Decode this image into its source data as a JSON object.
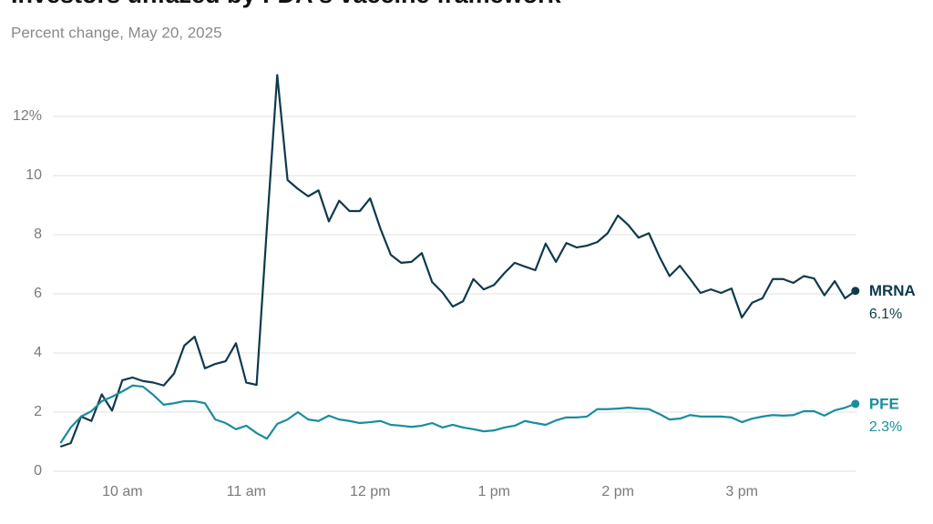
{
  "chart_data": {
    "type": "line",
    "title": "Investors unfazed by FDA's vaccine framework",
    "subtitle": "Percent change, May 20, 2025",
    "x": [
      570,
      575,
      580,
      585,
      590,
      595,
      600,
      605,
      610,
      615,
      620,
      625,
      630,
      635,
      640,
      645,
      650,
      655,
      660,
      665,
      670,
      675,
      680,
      685,
      690,
      695,
      700,
      705,
      710,
      715,
      720,
      725,
      730,
      735,
      740,
      745,
      750,
      755,
      760,
      765,
      770,
      775,
      780,
      785,
      790,
      795,
      800,
      805,
      810,
      815,
      820,
      825,
      830,
      835,
      840,
      845,
      850,
      855,
      860,
      865,
      870,
      875,
      880,
      885,
      890,
      895,
      900,
      905,
      910,
      915,
      920,
      925,
      930,
      935,
      940,
      945,
      950,
      955
    ],
    "series": [
      {
        "name": "MRNA",
        "color": "#0e3a4c",
        "end_label": "6.1%",
        "values": [
          0.83,
          0.95,
          1.85,
          1.7,
          2.6,
          2.05,
          3.08,
          3.17,
          3.05,
          3.0,
          2.9,
          3.3,
          4.25,
          4.55,
          3.48,
          3.63,
          3.72,
          4.33,
          3.0,
          2.92,
          8.25,
          13.4,
          9.85,
          9.55,
          9.3,
          9.5,
          8.45,
          9.15,
          8.8,
          8.8,
          9.23,
          8.2,
          7.32,
          7.05,
          7.08,
          7.38,
          6.4,
          6.05,
          5.57,
          5.75,
          6.5,
          6.15,
          6.3,
          6.7,
          7.05,
          6.92,
          6.8,
          7.7,
          7.08,
          7.72,
          7.57,
          7.63,
          7.75,
          8.05,
          8.65,
          8.33,
          7.9,
          8.05,
          7.27,
          6.6,
          6.95,
          6.5,
          6.03,
          6.15,
          6.03,
          6.18,
          5.2,
          5.7,
          5.85,
          6.5,
          6.5,
          6.37,
          6.6,
          6.52,
          5.95,
          6.43,
          5.85,
          6.1
        ]
      },
      {
        "name": "PFE",
        "color": "#1a8d9e",
        "end_label": "2.3%",
        "values": [
          0.95,
          1.48,
          1.85,
          2.03,
          2.37,
          2.52,
          2.7,
          2.9,
          2.86,
          2.58,
          2.25,
          2.3,
          2.37,
          2.37,
          2.3,
          1.75,
          1.63,
          1.42,
          1.54,
          1.29,
          1.1,
          1.6,
          1.75,
          2.0,
          1.75,
          1.7,
          1.88,
          1.75,
          1.7,
          1.63,
          1.66,
          1.7,
          1.57,
          1.54,
          1.5,
          1.54,
          1.63,
          1.48,
          1.57,
          1.48,
          1.42,
          1.35,
          1.38,
          1.48,
          1.54,
          1.7,
          1.63,
          1.57,
          1.72,
          1.82,
          1.82,
          1.85,
          2.1,
          2.1,
          2.12,
          2.15,
          2.12,
          2.1,
          1.94,
          1.75,
          1.78,
          1.9,
          1.85,
          1.85,
          1.85,
          1.82,
          1.66,
          1.78,
          1.85,
          1.9,
          1.88,
          1.9,
          2.03,
          2.03,
          1.88,
          2.06,
          2.15,
          2.28
        ]
      }
    ],
    "xlim": [
      565,
      982
    ],
    "xticks": [
      {
        "value": 600,
        "label": "10 am"
      },
      {
        "value": 660,
        "label": "11 am"
      },
      {
        "value": 720,
        "label": "12 pm"
      },
      {
        "value": 780,
        "label": "1 pm"
      },
      {
        "value": 840,
        "label": "2 pm"
      },
      {
        "value": 900,
        "label": "3 pm"
      }
    ],
    "ylim": [
      0,
      13.5
    ],
    "yticks": [
      0,
      2,
      4,
      6,
      8,
      10,
      {
        "value": 12,
        "label": "12%"
      }
    ],
    "grid": true
  }
}
